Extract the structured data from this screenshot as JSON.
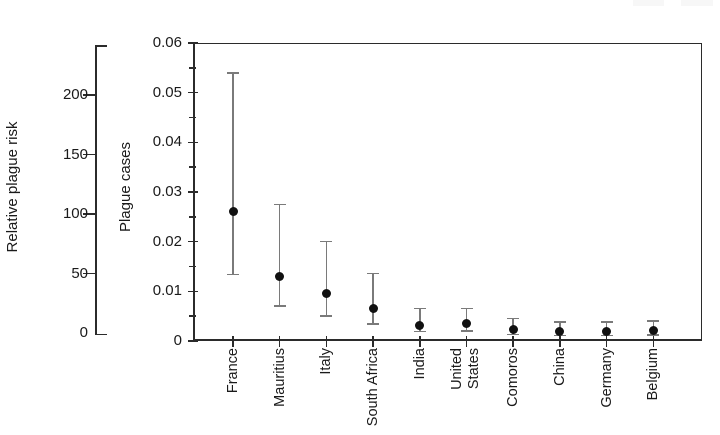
{
  "chart_data": {
    "type": "scatter",
    "title": "",
    "categories": [
      "France",
      "Mauritius",
      "Italy",
      "South Africa",
      "India",
      "United States",
      "Comoros",
      "China",
      "Germany",
      "Belgium"
    ],
    "two_line_labels": [
      "United States"
    ],
    "series": [
      {
        "name": "Plague cases",
        "values": [
          0.026,
          0.013,
          0.0096,
          0.0066,
          0.0032,
          0.0035,
          0.0023,
          0.002,
          0.002,
          0.0021
        ],
        "error_low": [
          0.0134,
          0.007,
          0.005,
          0.0034,
          0.0019,
          0.002,
          0.0013,
          0.0011,
          0.0011,
          0.0012
        ],
        "error_high": [
          0.054,
          0.0275,
          0.02,
          0.0136,
          0.0065,
          0.0065,
          0.0045,
          0.0038,
          0.0038,
          0.004
        ]
      }
    ],
    "xlabel": "",
    "ylabel": "Plague cases",
    "ylim": [
      0,
      0.06
    ],
    "ytick_values": [
      0,
      0.01,
      0.02,
      0.03,
      0.04,
      0.05,
      0.06
    ],
    "ytick_labels": [
      "0",
      "0.01",
      "0.02",
      "0.03",
      "0.04",
      "0.05",
      "0.06"
    ],
    "ytick_minor_values": [
      0.005,
      0.015,
      0.025,
      0.035,
      0.045,
      0.055
    ],
    "grid": false,
    "legend": false,
    "marker_color": "#111111",
    "errorbar_color": "#7a7a7a",
    "axis_color": "#2b2b2b",
    "secondary_axis": {
      "label": "Relative plague risk",
      "tick_values": [
        0,
        50,
        100,
        150,
        200
      ],
      "tick_labels": [
        "0",
        "50",
        "100",
        "150",
        "200"
      ],
      "shown_range": [
        0,
        240
      ]
    }
  }
}
